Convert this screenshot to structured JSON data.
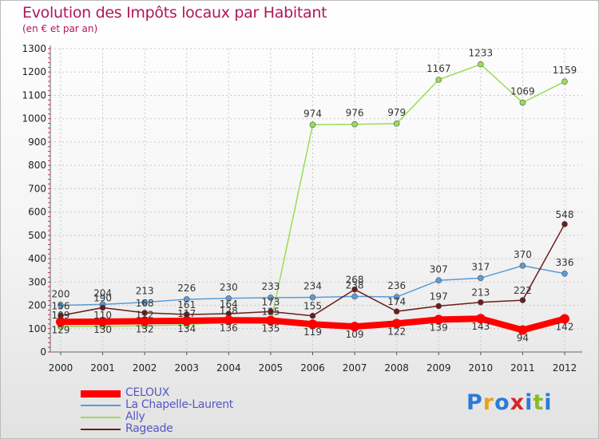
{
  "header": {
    "title": "Evolution des Impôts locaux par Habitant",
    "subtitle": "(en € et par an)"
  },
  "logo": {
    "text": "Proxiti",
    "colors": [
      "#2b7bd6",
      "#e8a21a",
      "#2b7bd6",
      "#d6262b",
      "#2b7bd6",
      "#88bb2b",
      "#2b7bd6"
    ]
  },
  "chart_data": {
    "type": "line",
    "title": "Evolution des Impôts locaux par Habitant",
    "subtitle": "(en € et par an)",
    "xlabel": "",
    "ylabel": "",
    "categories": [
      "2000",
      "2001",
      "2002",
      "2003",
      "2004",
      "2005",
      "2006",
      "2007",
      "2008",
      "2009",
      "2010",
      "2011",
      "2012"
    ],
    "ylim": [
      0,
      1300
    ],
    "yticks": [
      0,
      100,
      200,
      300,
      400,
      500,
      600,
      700,
      800,
      900,
      1000,
      1100,
      1200,
      1300
    ],
    "grid": true,
    "legend_position": "bottom-left",
    "series": [
      {
        "name": "CELOUX",
        "color": "#ff0000",
        "values": [
          129,
          130,
          132,
          134,
          136,
          135,
          119,
          109,
          122,
          139,
          143,
          94,
          142
        ],
        "labels": [
          "129",
          "130",
          "132",
          "134",
          "136",
          "135",
          "119",
          "109",
          "122",
          "139",
          "143",
          "94",
          "142"
        ]
      },
      {
        "name": "La Chapelle-Laurent",
        "color": "#5b9bd5",
        "values": [
          200,
          204,
          213,
          226,
          230,
          233,
          234,
          238,
          236,
          307,
          317,
          370,
          336
        ],
        "labels": [
          "200",
          "204",
          "213",
          "226",
          "230",
          "233",
          "234",
          "238",
          "236",
          "307",
          "317",
          "370",
          "336"
        ]
      },
      {
        "name": "Ally",
        "color": "#99dd55",
        "values": [
          109,
          110,
          112,
          117,
          128,
          125,
          974,
          976,
          979,
          1167,
          1233,
          1069,
          1159
        ],
        "labels": [
          "109",
          "110",
          "112",
          "117",
          "128",
          "125",
          "974",
          "976",
          "979",
          "1167",
          "1233",
          "1069",
          "1159"
        ]
      },
      {
        "name": "Rageade",
        "color": "#6b1c1c",
        "values": [
          156,
          190,
          168,
          161,
          164,
          173,
          155,
          268,
          174,
          197,
          213,
          222,
          548
        ],
        "labels": [
          "156",
          "190",
          "168",
          "161",
          "164",
          "173",
          "155",
          "268",
          "174",
          "197",
          "213",
          "222",
          "548"
        ]
      }
    ]
  }
}
